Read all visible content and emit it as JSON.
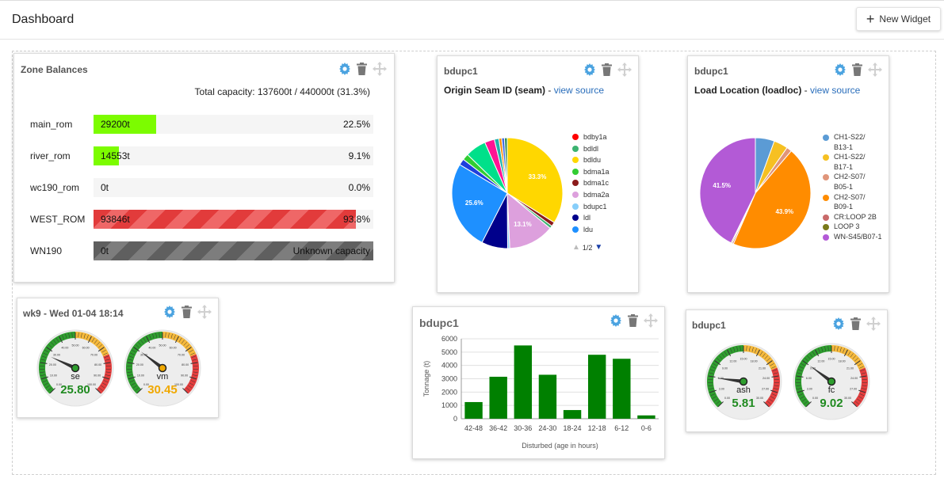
{
  "app": {
    "title": "Dashboard",
    "new_widget_label": "New Widget"
  },
  "zone_balances": {
    "title": "Zone Balances",
    "total": "Total capacity: 137600t / 440000t (31.3%)",
    "rows": [
      {
        "name": "main_rom",
        "value": "29200t",
        "pct": "22.5%",
        "fill": 0.225,
        "style": "green"
      },
      {
        "name": "river_rom",
        "value": "14553t",
        "pct": "9.1%",
        "fill": 0.091,
        "style": "green"
      },
      {
        "name": "wc190_rom",
        "value": "0t",
        "pct": "0.0%",
        "fill": 0.0,
        "style": "green"
      },
      {
        "name": "WEST_ROM",
        "value": "93846t",
        "pct": "93.8%",
        "fill": 0.938,
        "style": "red"
      },
      {
        "name": "WN190",
        "value": "0t",
        "pct": "Unknown capacity",
        "fill": 1.0,
        "style": "gray"
      }
    ]
  },
  "seam_widget": {
    "title": "bdupc1",
    "chart_title": "Origin Seam ID (seam)",
    "separator": " - ",
    "link": "view source",
    "pager": "1/2",
    "chart_data": {
      "type": "pie",
      "slices": [
        {
          "label": "bdldu",
          "value": 33.3,
          "color": "#ffd700",
          "show_label": "33.3%"
        },
        {
          "label": "bdma1c",
          "value": 1.2,
          "color": "#8b1a1a"
        },
        {
          "label": "bdldl",
          "value": 0.8,
          "color": "#3cb371"
        },
        {
          "label": "bdma2a",
          "value": 13.1,
          "color": "#dda0dd",
          "show_label": "13.1%"
        },
        {
          "label": "bdupc1",
          "value": 0.6,
          "color": "#87cefa"
        },
        {
          "label": "ldl",
          "value": 7.5,
          "color": "#00008b"
        },
        {
          "label": "ldu",
          "value": 25.6,
          "color": "#1e90ff",
          "show_label": "25.6%"
        },
        {
          "label": "",
          "value": 1.8,
          "color": "#1e3fdd"
        },
        {
          "label": "",
          "value": 1.8,
          "color": "#32cd32"
        },
        {
          "label": "",
          "value": 6.0,
          "color": "#00e08a"
        },
        {
          "label": "",
          "value": 2.8,
          "color": "#ff1493"
        },
        {
          "label": "",
          "value": 1.3,
          "color": "#20b2aa"
        },
        {
          "label": "",
          "value": 0.8,
          "color": "#ff8c00"
        },
        {
          "label": "",
          "value": 0.8,
          "color": "#4169e1"
        },
        {
          "label": "",
          "value": 0.8,
          "color": "#2e8b57"
        }
      ],
      "legend": [
        {
          "label": "bdby1a",
          "color": "#ff0000"
        },
        {
          "label": "bdldl",
          "color": "#3cb371"
        },
        {
          "label": "bdldu",
          "color": "#ffd700"
        },
        {
          "label": "bdma1a",
          "color": "#32cd32"
        },
        {
          "label": "bdma1c",
          "color": "#8b1a1a"
        },
        {
          "label": "bdma2a",
          "color": "#dda0dd"
        },
        {
          "label": "bdupc1",
          "color": "#87cefa"
        },
        {
          "label": "ldl",
          "color": "#00008b"
        },
        {
          "label": "ldu",
          "color": "#1e90ff"
        }
      ]
    }
  },
  "load_widget": {
    "title": "bdupc1",
    "chart_title": "Load Location (loadloc)",
    "separator": " - ",
    "link": "view source",
    "chart_data": {
      "type": "pie",
      "slices": [
        {
          "label": "CH1-S22/ B13-1",
          "value": 5.4,
          "color": "#5b9bd5"
        },
        {
          "label": "CH1-S22/ B17-1",
          "value": 4.0,
          "color": "#f6c022"
        },
        {
          "label": "CH2-S07/ B05-1",
          "value": 1.5,
          "color": "#e0957a"
        },
        {
          "label": "CH2-S07/ B09-1",
          "value": 43.9,
          "color": "#ff8c00",
          "show_label": "43.9%"
        },
        {
          "label": "CR:LOOP 2B",
          "value": 0.4,
          "color": "#c96a6a"
        },
        {
          "label": "LOOP 3",
          "value": 0.3,
          "color": "#7a7a1a"
        },
        {
          "label": "WN-S45/B07-1",
          "value": 41.5,
          "color": "#b35ad6",
          "show_label": "41.5%"
        }
      ],
      "legend": [
        {
          "label": "CH1-S22/",
          "label2": "B13-1",
          "color": "#5b9bd5"
        },
        {
          "label": "CH1-S22/",
          "label2": "B17-1",
          "color": "#f6c022"
        },
        {
          "label": "CH2-S07/",
          "label2": "B05-1",
          "color": "#e0957a"
        },
        {
          "label": "CH2-S07/",
          "label2": "B09-1",
          "color": "#ff8c00"
        },
        {
          "label": "CR:LOOP 2B",
          "color": "#c96a6a"
        },
        {
          "label": "LOOP 3",
          "color": "#7a7a1a"
        },
        {
          "label": "WN-S45/B07-1",
          "color": "#b35ad6"
        }
      ]
    }
  },
  "wk9_widget": {
    "title": "wk9 - Wed 01-04 18:14",
    "gauges": [
      {
        "name": "se",
        "value": "25.80",
        "value_num": 25.8,
        "color": "#1f8a1f"
      },
      {
        "name": "vm",
        "value": "30.45",
        "value_num": 30.45,
        "color": "#f0a800"
      }
    ],
    "scale_labels": [
      "0.00",
      "10.00",
      "20.00",
      "30.00",
      "40.00",
      "50.00",
      "60.00",
      "70.00",
      "80.00",
      "90.00",
      "100.00"
    ]
  },
  "bar_widget": {
    "title": "bdupc1",
    "chart_data": {
      "type": "bar",
      "categories": [
        "42-48",
        "36-42",
        "30-36",
        "24-30",
        "18-24",
        "12-18",
        "6-12",
        "0-6"
      ],
      "values": [
        1250,
        3150,
        5500,
        3300,
        650,
        4800,
        4500,
        250
      ],
      "xlabel": "Disturbed (age in hours)",
      "ylabel": "Tonnage (t)",
      "ylim": [
        0,
        6000
      ],
      "yticks": [
        "0",
        "1000",
        "2000",
        "3000",
        "4000",
        "5000",
        "6000"
      ],
      "color": "#008000",
      "grid": true
    }
  },
  "ashfc_widget": {
    "title": "bdupc1",
    "gauges": [
      {
        "name": "ash",
        "value": "5.81",
        "value_num": 5.81,
        "color": "#1f8a1f"
      },
      {
        "name": "fc",
        "value": "9.02",
        "value_num": 9.02,
        "color": "#1f8a1f"
      }
    ],
    "scale_labels": [
      "0.00",
      "3.00",
      "6.00",
      "9.00",
      "12.00",
      "15.00",
      "18.00",
      "21.00",
      "24.00",
      "27.00",
      "30.00"
    ]
  },
  "icons": {
    "settings": "gear-icon",
    "delete": "trash-icon",
    "move": "move-icon"
  },
  "colors": {
    "accent": "#4ba3e0",
    "link": "#2a6ebb"
  }
}
